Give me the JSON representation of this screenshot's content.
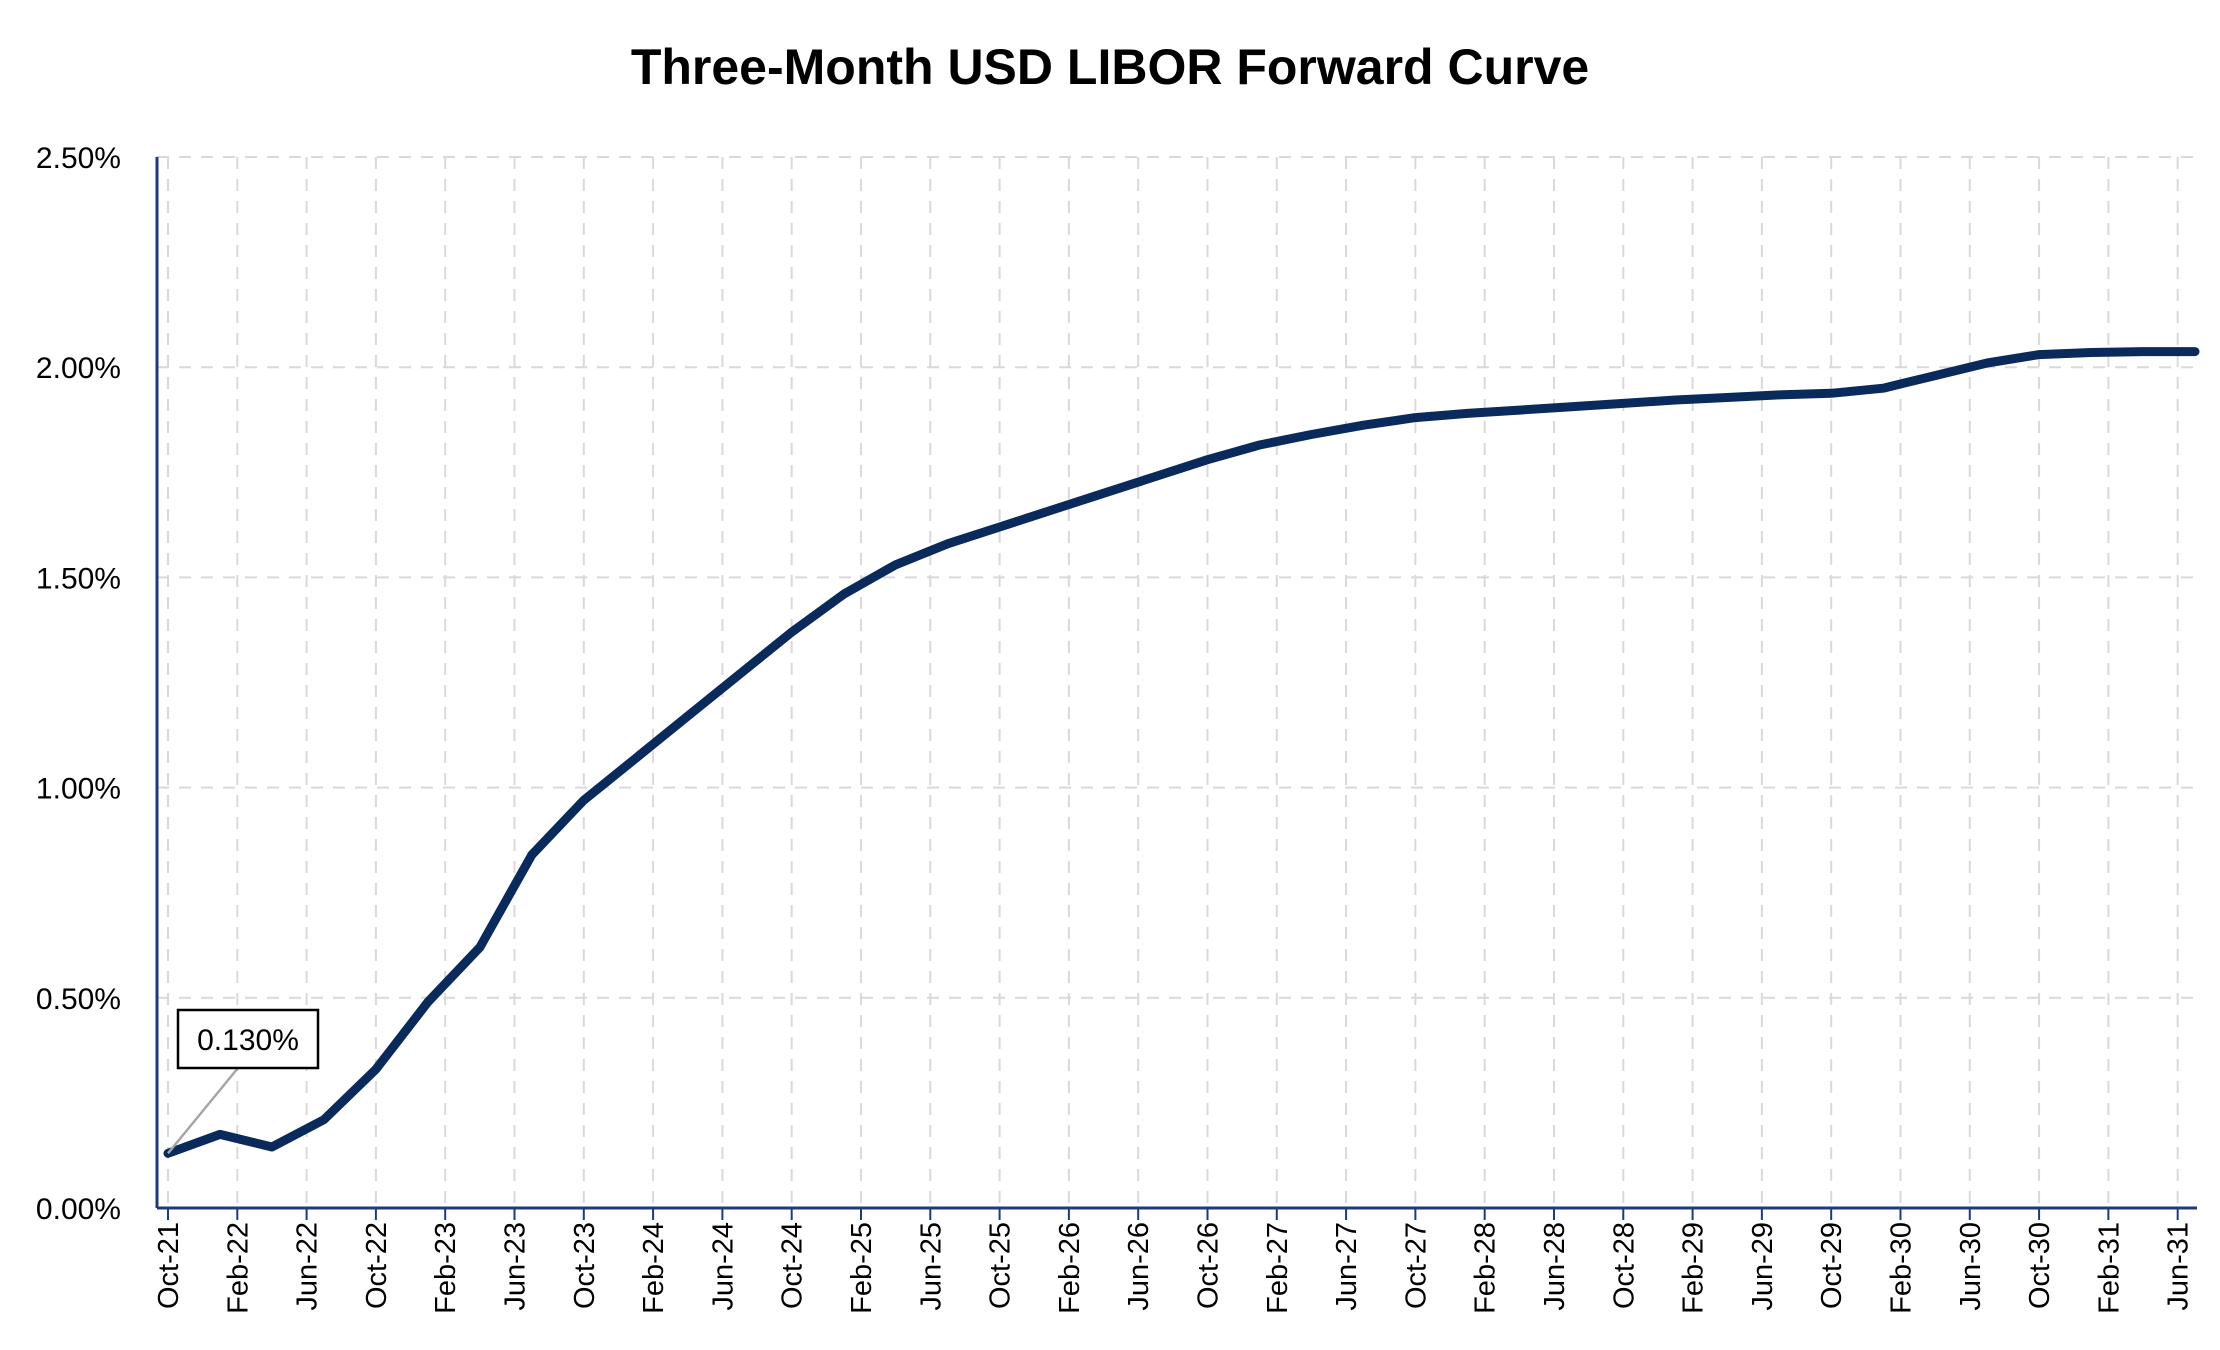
{
  "chart_data": {
    "type": "line",
    "title": "Three-Month USD LIBOR Forward Curve",
    "xlabel": "",
    "ylabel": "",
    "ylim": [
      0,
      0.025
    ],
    "grid": true,
    "legend": "none",
    "colors": {
      "line": "#0a2a5c",
      "axis": "#1f3a7a",
      "grid": "#d9d9d9",
      "annotation_leader": "#a6a6a6"
    },
    "x_tick_labels": [
      "Oct-21",
      "Feb-22",
      "Jun-22",
      "Oct-22",
      "Feb-23",
      "Jun-23",
      "Oct-23",
      "Feb-24",
      "Jun-24",
      "Oct-24",
      "Feb-25",
      "Jun-25",
      "Oct-25",
      "Feb-26",
      "Jun-26",
      "Oct-26",
      "Feb-27",
      "Jun-27",
      "Oct-27",
      "Feb-28",
      "Jun-28",
      "Oct-28",
      "Feb-29",
      "Jun-29",
      "Oct-29",
      "Feb-30",
      "Jun-30",
      "Oct-30",
      "Feb-31",
      "Jun-31"
    ],
    "y_tick_labels": [
      "0.00%",
      "0.50%",
      "1.00%",
      "1.50%",
      "2.00%",
      "2.50%"
    ],
    "y_ticks": [
      0,
      0.005,
      0.01,
      0.015,
      0.02,
      0.025
    ],
    "series": [
      {
        "x": [
          "2021-10",
          "2022-01",
          "2022-04",
          "2022-07",
          "2022-10",
          "2023-01",
          "2023-04",
          "2023-07",
          "2023-10",
          "2024-01",
          "2024-04",
          "2024-07",
          "2024-10",
          "2025-01",
          "2025-04",
          "2025-07",
          "2025-10",
          "2026-01",
          "2026-04",
          "2026-07",
          "2026-10",
          "2027-01",
          "2027-04",
          "2027-07",
          "2027-10",
          "2028-01",
          "2028-04",
          "2028-07",
          "2028-10",
          "2029-01",
          "2029-04",
          "2029-07",
          "2029-10",
          "2030-01",
          "2030-04",
          "2030-07",
          "2030-10",
          "2031-01",
          "2031-04",
          "2031-07"
        ],
        "values": [
          0.0013,
          0.00175,
          0.00145,
          0.0021,
          0.0033,
          0.0049,
          0.0062,
          0.0084,
          0.0097,
          0.0107,
          0.0117,
          0.0127,
          0.0137,
          0.0146,
          0.0153,
          0.0158,
          0.0162,
          0.0166,
          0.017,
          0.0174,
          0.0178,
          0.01815,
          0.0184,
          0.01862,
          0.0188,
          0.0189,
          0.01898,
          0.01906,
          0.01914,
          0.01922,
          0.01928,
          0.01934,
          0.01938,
          0.0195,
          0.0198,
          0.0201,
          0.0203,
          0.02035,
          0.02037,
          0.02037
        ]
      }
    ],
    "annotations": [
      {
        "text": "0.130%",
        "x": "2021-10",
        "y": 0.0013
      }
    ]
  }
}
